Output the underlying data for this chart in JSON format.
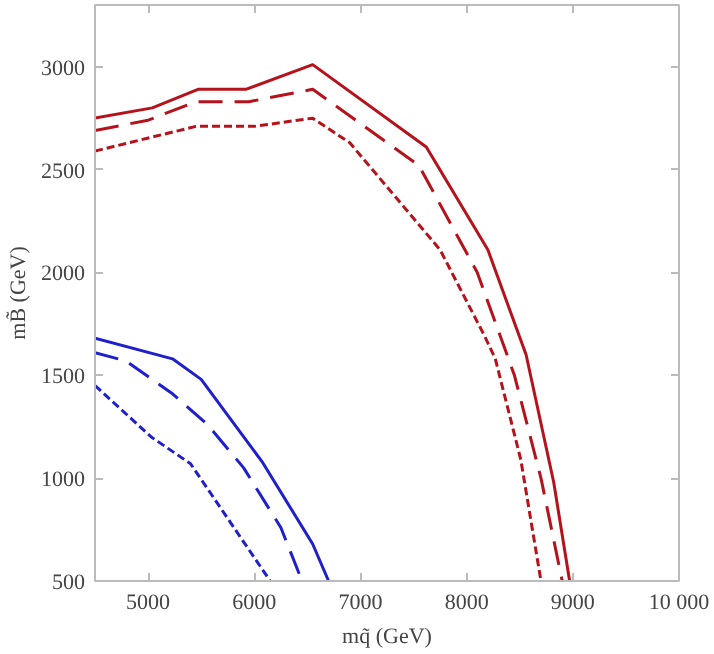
{
  "chart_data": {
    "type": "line",
    "xlabel": "mq̃ (GeV)",
    "ylabel": "mB̃ (GeV)",
    "xlim": [
      4500,
      10000
    ],
    "ylim": [
      500,
      3300
    ],
    "xticks": [
      5000,
      6000,
      7000,
      8000,
      9000,
      {
        "value": 10000,
        "label": "10 000"
      }
    ],
    "yticks": [
      500,
      1000,
      1500,
      2000,
      2500,
      3000
    ],
    "series": [
      {
        "color": "#b5121b",
        "line_style": "solid",
        "x": [
          4500,
          5040,
          5470,
          5920,
          6550,
          7620,
          8200,
          8560,
          8820,
          8970
        ],
        "values": [
          2750,
          2800,
          2890,
          2890,
          3010,
          2610,
          2110,
          1600,
          980,
          500
        ]
      },
      {
        "color": "#b5121b",
        "line_style": "longdash",
        "x": [
          4500,
          5000,
          5450,
          5950,
          6550,
          7550,
          8100,
          8450,
          8700,
          8900
        ],
        "values": [
          2690,
          2740,
          2830,
          2830,
          2890,
          2520,
          2000,
          1500,
          1000,
          500
        ]
      },
      {
        "color": "#b5121b",
        "line_style": "dashed",
        "x": [
          4500,
          5450,
          6000,
          6550,
          6900,
          7750,
          8170,
          8270,
          8510,
          8700
        ],
        "values": [
          2590,
          2710,
          2710,
          2750,
          2630,
          2110,
          1690,
          1580,
          1090,
          500
        ]
      },
      {
        "color": "#1f1fcc",
        "line_style": "solid",
        "x": [
          4500,
          5230,
          5500,
          6080,
          6550,
          6700
        ],
        "values": [
          1680,
          1580,
          1480,
          1075,
          680,
          500
        ]
      },
      {
        "color": "#1f1fcc",
        "line_style": "longdash",
        "x": [
          4500,
          4790,
          5230,
          5560,
          5900,
          6250,
          6450
        ],
        "values": [
          1610,
          1570,
          1410,
          1260,
          1050,
          760,
          500
        ]
      },
      {
        "color": "#1f1fcc",
        "line_style": "dashed",
        "x": [
          4500,
          5030,
          5400,
          6150
        ],
        "values": [
          1450,
          1200,
          1070,
          500
        ]
      }
    ]
  }
}
